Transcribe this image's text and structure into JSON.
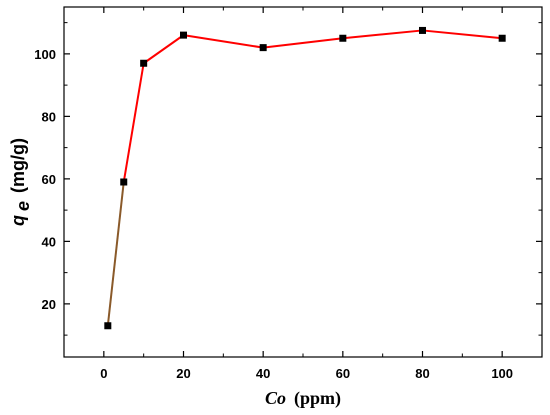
{
  "chart_data": {
    "type": "line",
    "xlabel": {
      "main": "Co",
      "unit": "(ppm)"
    },
    "ylabel": {
      "symbol": "q",
      "subscript": "e",
      "unit": "(mg/g)"
    },
    "xlim": [
      -10,
      110
    ],
    "ylim": [
      3,
      115
    ],
    "x_ticks": [
      0,
      20,
      40,
      60,
      80,
      100
    ],
    "x_minor_ticks": [
      -10,
      10,
      30,
      50,
      70,
      90,
      110
    ],
    "y_ticks": [
      20,
      40,
      60,
      80,
      100
    ],
    "y_minor_ticks": [
      10,
      30,
      50,
      70,
      90,
      110
    ],
    "grid": false,
    "series": [
      {
        "color": "#ff0000",
        "marker": "square",
        "marker_color": "#000000",
        "x": [
          1,
          5,
          10,
          20,
          40,
          60,
          80,
          100
        ],
        "y": [
          13,
          59,
          97,
          106,
          102,
          105,
          107.5,
          105
        ]
      }
    ],
    "low_segment_color": "#8a5a2a"
  }
}
